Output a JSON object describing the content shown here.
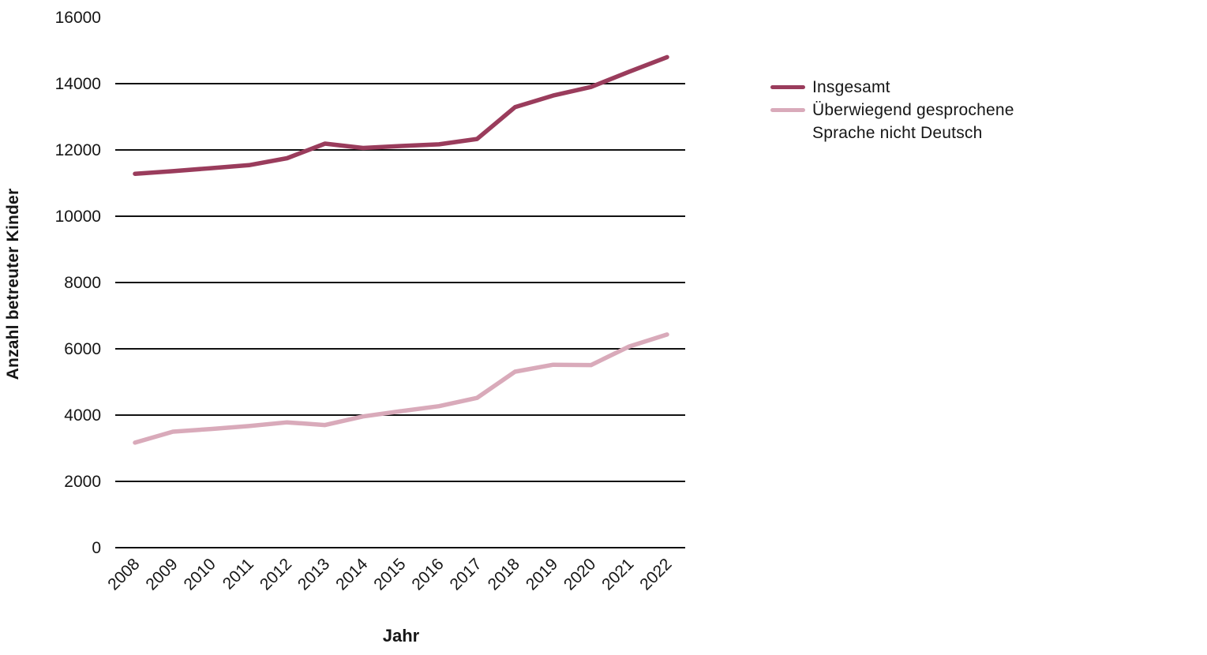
{
  "chart_data": {
    "type": "line",
    "xlabel": "Jahr",
    "ylabel": "Anzahl betreuter Kinder",
    "categories": [
      "2008",
      "2009",
      "2010",
      "2011",
      "2012",
      "2013",
      "2014",
      "2015",
      "2016",
      "2017",
      "2018",
      "2019",
      "2020",
      "2021",
      "2022"
    ],
    "yticks": [
      0,
      2000,
      4000,
      6000,
      8000,
      10000,
      12000,
      14000,
      16000
    ],
    "ylim": [
      0,
      16000
    ],
    "grid": "horizontal",
    "gridline_note": "horizontal gridlines at 0 through 14000; no gridline at 16000",
    "legend_position": "right",
    "series": [
      {
        "name": "Insgesamt",
        "color": "#9a3c5c",
        "values": [
          11280,
          11360,
          11450,
          11540,
          11750,
          12190,
          12060,
          12120,
          12170,
          12330,
          13290,
          13640,
          13900,
          14360,
          14800
        ]
      },
      {
        "name": "Überwiegend gesprochene Sprache nicht Deutsch",
        "color": "#d9aaba",
        "values": [
          3170,
          3500,
          3580,
          3670,
          3780,
          3700,
          3960,
          4120,
          4270,
          4520,
          5310,
          5520,
          5510,
          6070,
          6430
        ]
      }
    ]
  },
  "colors": {
    "background": "#ffffff",
    "text": "#161616",
    "grid": "#111111",
    "series_insgesamt": "#9a3c5c",
    "series_nicht_deutsch": "#d9aaba"
  }
}
